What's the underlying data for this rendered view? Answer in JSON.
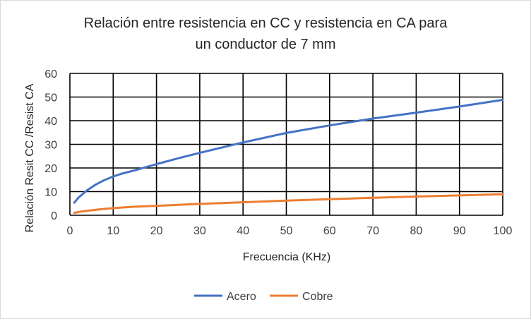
{
  "chart_data": {
    "type": "line",
    "title_line1": "Relación entre resistencia en CC y resistencia en CA para",
    "title_line2": "un conductor de 7 mm",
    "xlabel": "Frecuencia (KHz)",
    "ylabel": "Relación Resit CC /Resist CA",
    "xlim": [
      0,
      100
    ],
    "ylim": [
      0,
      60
    ],
    "xticks": [
      0,
      10,
      20,
      30,
      40,
      50,
      60,
      70,
      80,
      90,
      100
    ],
    "yticks": [
      0,
      10,
      20,
      30,
      40,
      50,
      60
    ],
    "grid": true,
    "legend_position": "bottom",
    "series": [
      {
        "name": "Acero",
        "color": "#4472c4",
        "x": [
          1,
          2,
          4,
          6,
          8,
          10,
          12,
          15,
          20,
          25,
          30,
          40,
          50,
          60,
          70,
          80,
          90,
          100
        ],
        "y": [
          5.3,
          7.5,
          10.6,
          13.0,
          14.9,
          16.4,
          17.6,
          19.0,
          21.6,
          24.1,
          26.4,
          30.8,
          34.8,
          38.0,
          40.9,
          43.4,
          46.0,
          48.8
        ]
      },
      {
        "name": "Cobre",
        "color": "#ed7d31",
        "x": [
          1,
          2,
          4,
          6,
          8,
          10,
          15,
          20,
          30,
          40,
          50,
          60,
          70,
          80,
          90,
          100
        ],
        "y": [
          1.0,
          1.4,
          1.9,
          2.3,
          2.7,
          3.0,
          3.6,
          4.0,
          4.8,
          5.5,
          6.2,
          6.8,
          7.4,
          7.9,
          8.4,
          8.9
        ]
      }
    ]
  }
}
